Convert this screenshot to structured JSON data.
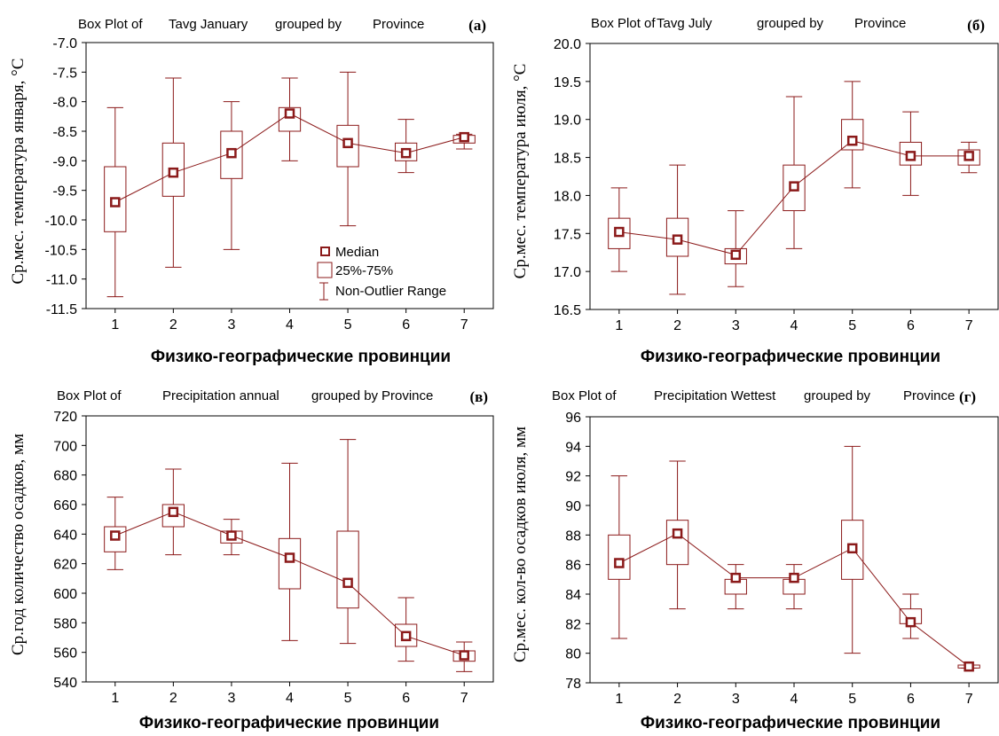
{
  "legend": {
    "median": "Median",
    "box": "25%-75%",
    "range": "Non-Outlier Range"
  },
  "colors": {
    "mark": "#8b1a1a",
    "axis": "#000000",
    "background": "#ffffff"
  },
  "chart_data": [
    {
      "type": "box",
      "panel": "(а)",
      "title_parts": [
        "Box Plot of",
        "Tavg January",
        "grouped by",
        "Province"
      ],
      "xlabel": "Физико-географические провинции",
      "ylabel": "Ср.мес. температура января, °С",
      "ylim": [
        -11.5,
        -7.0
      ],
      "yticks": [
        "-7.0",
        "-7.5",
        "-8.0",
        "-8.5",
        "-9.0",
        "-9.5",
        "-10.0",
        "-10.5",
        "-11.0",
        "-11.5"
      ],
      "categories": [
        "1",
        "2",
        "3",
        "4",
        "5",
        "6",
        "7"
      ],
      "median": [
        -9.7,
        -9.2,
        -8.87,
        -8.2,
        -8.7,
        -8.87,
        -8.6
      ],
      "q1": [
        -10.2,
        -9.6,
        -9.3,
        -8.5,
        -9.1,
        -9.0,
        -8.7
      ],
      "q3": [
        -9.1,
        -8.7,
        -8.5,
        -8.1,
        -8.4,
        -8.7,
        -8.57
      ],
      "whisker_low": [
        -11.3,
        -10.8,
        -10.5,
        -9.0,
        -10.1,
        -9.2,
        -8.8
      ],
      "whisker_high": [
        -8.1,
        -7.6,
        -8.0,
        -7.6,
        -7.5,
        -8.3,
        -8.55
      ],
      "show_legend": true
    },
    {
      "type": "box",
      "panel": "(б)",
      "title_parts": [
        "Box Plot of",
        "Tavg July",
        "grouped by",
        "Province"
      ],
      "xlabel": "Физико-географические провинции",
      "ylabel": "Ср.мес. температура июля, °С",
      "ylim": [
        16.5,
        20.0
      ],
      "yticks": [
        "20.0",
        "19.5",
        "19.0",
        "18.5",
        "18.0",
        "17.5",
        "17.0",
        "16.5"
      ],
      "categories": [
        "1",
        "2",
        "3",
        "4",
        "5",
        "6",
        "7"
      ],
      "median": [
        17.52,
        17.42,
        17.22,
        18.12,
        18.72,
        18.52,
        18.52
      ],
      "q1": [
        17.3,
        17.2,
        17.1,
        17.8,
        18.6,
        18.4,
        18.4
      ],
      "q3": [
        17.7,
        17.7,
        17.3,
        18.4,
        19.0,
        18.7,
        18.6
      ],
      "whisker_low": [
        17.0,
        16.7,
        16.8,
        17.3,
        18.1,
        18.0,
        18.3
      ],
      "whisker_high": [
        18.1,
        18.4,
        17.8,
        19.3,
        19.5,
        19.1,
        18.7
      ],
      "show_legend": false
    },
    {
      "type": "box",
      "panel": "(в)",
      "title_parts": [
        "Box Plot of",
        "Precipitation annual",
        "grouped by",
        "Province"
      ],
      "xlabel": "Физико-географические провинции",
      "ylabel": "Ср.год количество осадков, мм",
      "ylim": [
        540,
        720
      ],
      "yticks": [
        "720",
        "700",
        "680",
        "660",
        "640",
        "620",
        "600",
        "580",
        "560",
        "540"
      ],
      "categories": [
        "1",
        "2",
        "3",
        "4",
        "5",
        "6",
        "7"
      ],
      "median": [
        639,
        655,
        639,
        624,
        607,
        571,
        558
      ],
      "q1": [
        628,
        645,
        634,
        603,
        590,
        564,
        554
      ],
      "q3": [
        645,
        660,
        642,
        637,
        642,
        579,
        561
      ],
      "whisker_low": [
        616,
        626,
        626,
        568,
        566,
        554,
        547
      ],
      "whisker_high": [
        665,
        684,
        650,
        688,
        704,
        597,
        567
      ],
      "show_legend": false
    },
    {
      "type": "box",
      "panel": "(г)",
      "title_parts": [
        "Box Plot of",
        "Precipitation Wettest",
        "grouped by",
        "Province"
      ],
      "xlabel": "Физико-географические провинции",
      "ylabel": "Ср.мес. кол-во осадков июля, мм",
      "ylim": [
        78,
        96
      ],
      "yticks": [
        "96",
        "94",
        "92",
        "90",
        "88",
        "86",
        "84",
        "82",
        "80",
        "78"
      ],
      "categories": [
        "1",
        "2",
        "3",
        "4",
        "5",
        "6",
        "7"
      ],
      "median": [
        86.1,
        88.1,
        85.1,
        85.1,
        87.1,
        82.1,
        79.1
      ],
      "q1": [
        85,
        86,
        84,
        84,
        85,
        82,
        79
      ],
      "q3": [
        88,
        89,
        85,
        85,
        89,
        83,
        79.2
      ],
      "whisker_low": [
        81,
        83,
        83,
        83,
        80,
        81,
        79
      ],
      "whisker_high": [
        92,
        93,
        86,
        86,
        94,
        84,
        79.2
      ],
      "show_legend": false
    }
  ]
}
